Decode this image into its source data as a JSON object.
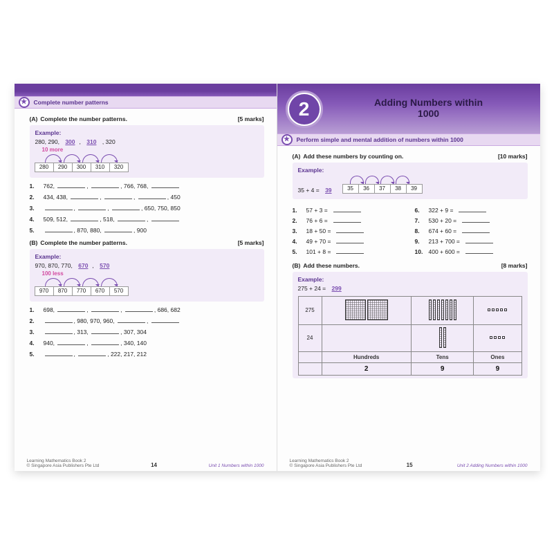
{
  "colors": {
    "accent": "#7a4db0",
    "banner_bg": "#e8d9f1",
    "example_bg": "#f2ebf8",
    "hint": "#d24aa0",
    "band_top": "#6a3d9e",
    "band_bot": "#8559b8"
  },
  "left": {
    "banner": "Complete number patterns",
    "A": {
      "letter": "(A)",
      "title": "Complete the number patterns.",
      "marks": "[5 marks]",
      "example": {
        "label": "Example:",
        "pre": "280, 290,",
        "ans1": "300",
        "ans2": "310",
        "post": ", 320",
        "hint": "10 more",
        "cells": [
          "280",
          "290",
          "300",
          "310",
          "320"
        ]
      },
      "items": [
        {
          "n": "1.",
          "t": [
            "762,",
            "B",
            ",",
            "B",
            ",",
            "766, 768,",
            "B"
          ]
        },
        {
          "n": "2.",
          "t": [
            "434, 438,",
            "B",
            ",",
            "B",
            ",",
            "B",
            ", 450"
          ]
        },
        {
          "n": "3.",
          "t": [
            "B",
            ",",
            "B",
            ",",
            "B",
            ", 650, 750, 850"
          ]
        },
        {
          "n": "4.",
          "t": [
            "509, 512,",
            "B",
            ", 518,",
            "B",
            ",",
            "B"
          ]
        },
        {
          "n": "5.",
          "t": [
            "B",
            ", 870, 880,",
            "B",
            ", 900"
          ]
        }
      ]
    },
    "B": {
      "letter": "(B)",
      "title": "Complete the number patterns.",
      "marks": "[5 marks]",
      "example": {
        "label": "Example:",
        "pre": "970, 870, 770,",
        "ans1": "670",
        "ans2": "570",
        "hint": "100 less",
        "cells": [
          "970",
          "870",
          "770",
          "670",
          "570"
        ]
      },
      "items": [
        {
          "n": "1.",
          "t": [
            "698,",
            "B",
            ",",
            "B",
            ",",
            "B",
            ", 686, 682"
          ]
        },
        {
          "n": "2.",
          "t": [
            "B",
            ", 980, 970, 960,",
            "B",
            ",",
            "B"
          ]
        },
        {
          "n": "3.",
          "t": [
            "B",
            ", 313,",
            "B",
            ", 307, 304"
          ]
        },
        {
          "n": "4.",
          "t": [
            "940,",
            "B",
            ",",
            "B",
            ", 340, 140"
          ]
        },
        {
          "n": "5.",
          "t": [
            "B",
            ",",
            "B",
            ", 222, 217, 212"
          ]
        }
      ]
    },
    "footer": {
      "book": "Learning Mathematics Book 2",
      "pub": "© Singapore Asia Publishers Pte Ltd",
      "page": "14",
      "unit": "Unit 1  Numbers within 1000"
    }
  },
  "right": {
    "chapter_num": "2",
    "chapter_title_l1": "Adding Numbers within",
    "chapter_title_l2": "1000",
    "banner": "Perform simple and mental addition of numbers within 1000",
    "A": {
      "letter": "(A)",
      "title": "Add these numbers by counting on.",
      "marks": "[10 marks]",
      "example": {
        "label": "Example:",
        "expr": "35 + 4 =",
        "ans": "39",
        "cells": [
          "35",
          "36",
          "37",
          "38",
          "39"
        ]
      },
      "left_items": [
        {
          "n": "1.",
          "t": "57 + 3 ="
        },
        {
          "n": "2.",
          "t": "76 + 6 ="
        },
        {
          "n": "3.",
          "t": "18 + 50 ="
        },
        {
          "n": "4.",
          "t": "49 + 70 ="
        },
        {
          "n": "5.",
          "t": "101 + 8 ="
        }
      ],
      "right_items": [
        {
          "n": "6.",
          "t": "322 + 9 ="
        },
        {
          "n": "7.",
          "t": "530 + 20 ="
        },
        {
          "n": "8.",
          "t": "674 + 60 ="
        },
        {
          "n": "9.",
          "t": "213 + 700 ="
        },
        {
          "n": "10.",
          "t": "400 + 600 ="
        }
      ]
    },
    "B": {
      "letter": "(B)",
      "title": "Add these numbers.",
      "marks": "[8 marks]",
      "example": {
        "label": "Example:",
        "expr": "275 + 24 =",
        "ans": "299"
      },
      "table": {
        "row1_label": "275",
        "row1": {
          "hundreds": 2,
          "tens": 7,
          "ones": 5
        },
        "row2_label": "24",
        "row2": {
          "hundreds": 0,
          "tens": 2,
          "ones": 4
        },
        "headers": [
          "Hundreds",
          "Tens",
          "Ones"
        ],
        "values": [
          "2",
          "9",
          "9"
        ]
      }
    },
    "footer": {
      "book": "Learning Mathematics Book 2",
      "pub": "© Singapore Asia Publishers Pte Ltd",
      "page": "15",
      "unit": "Unit 2  Adding Numbers within 1000"
    }
  }
}
